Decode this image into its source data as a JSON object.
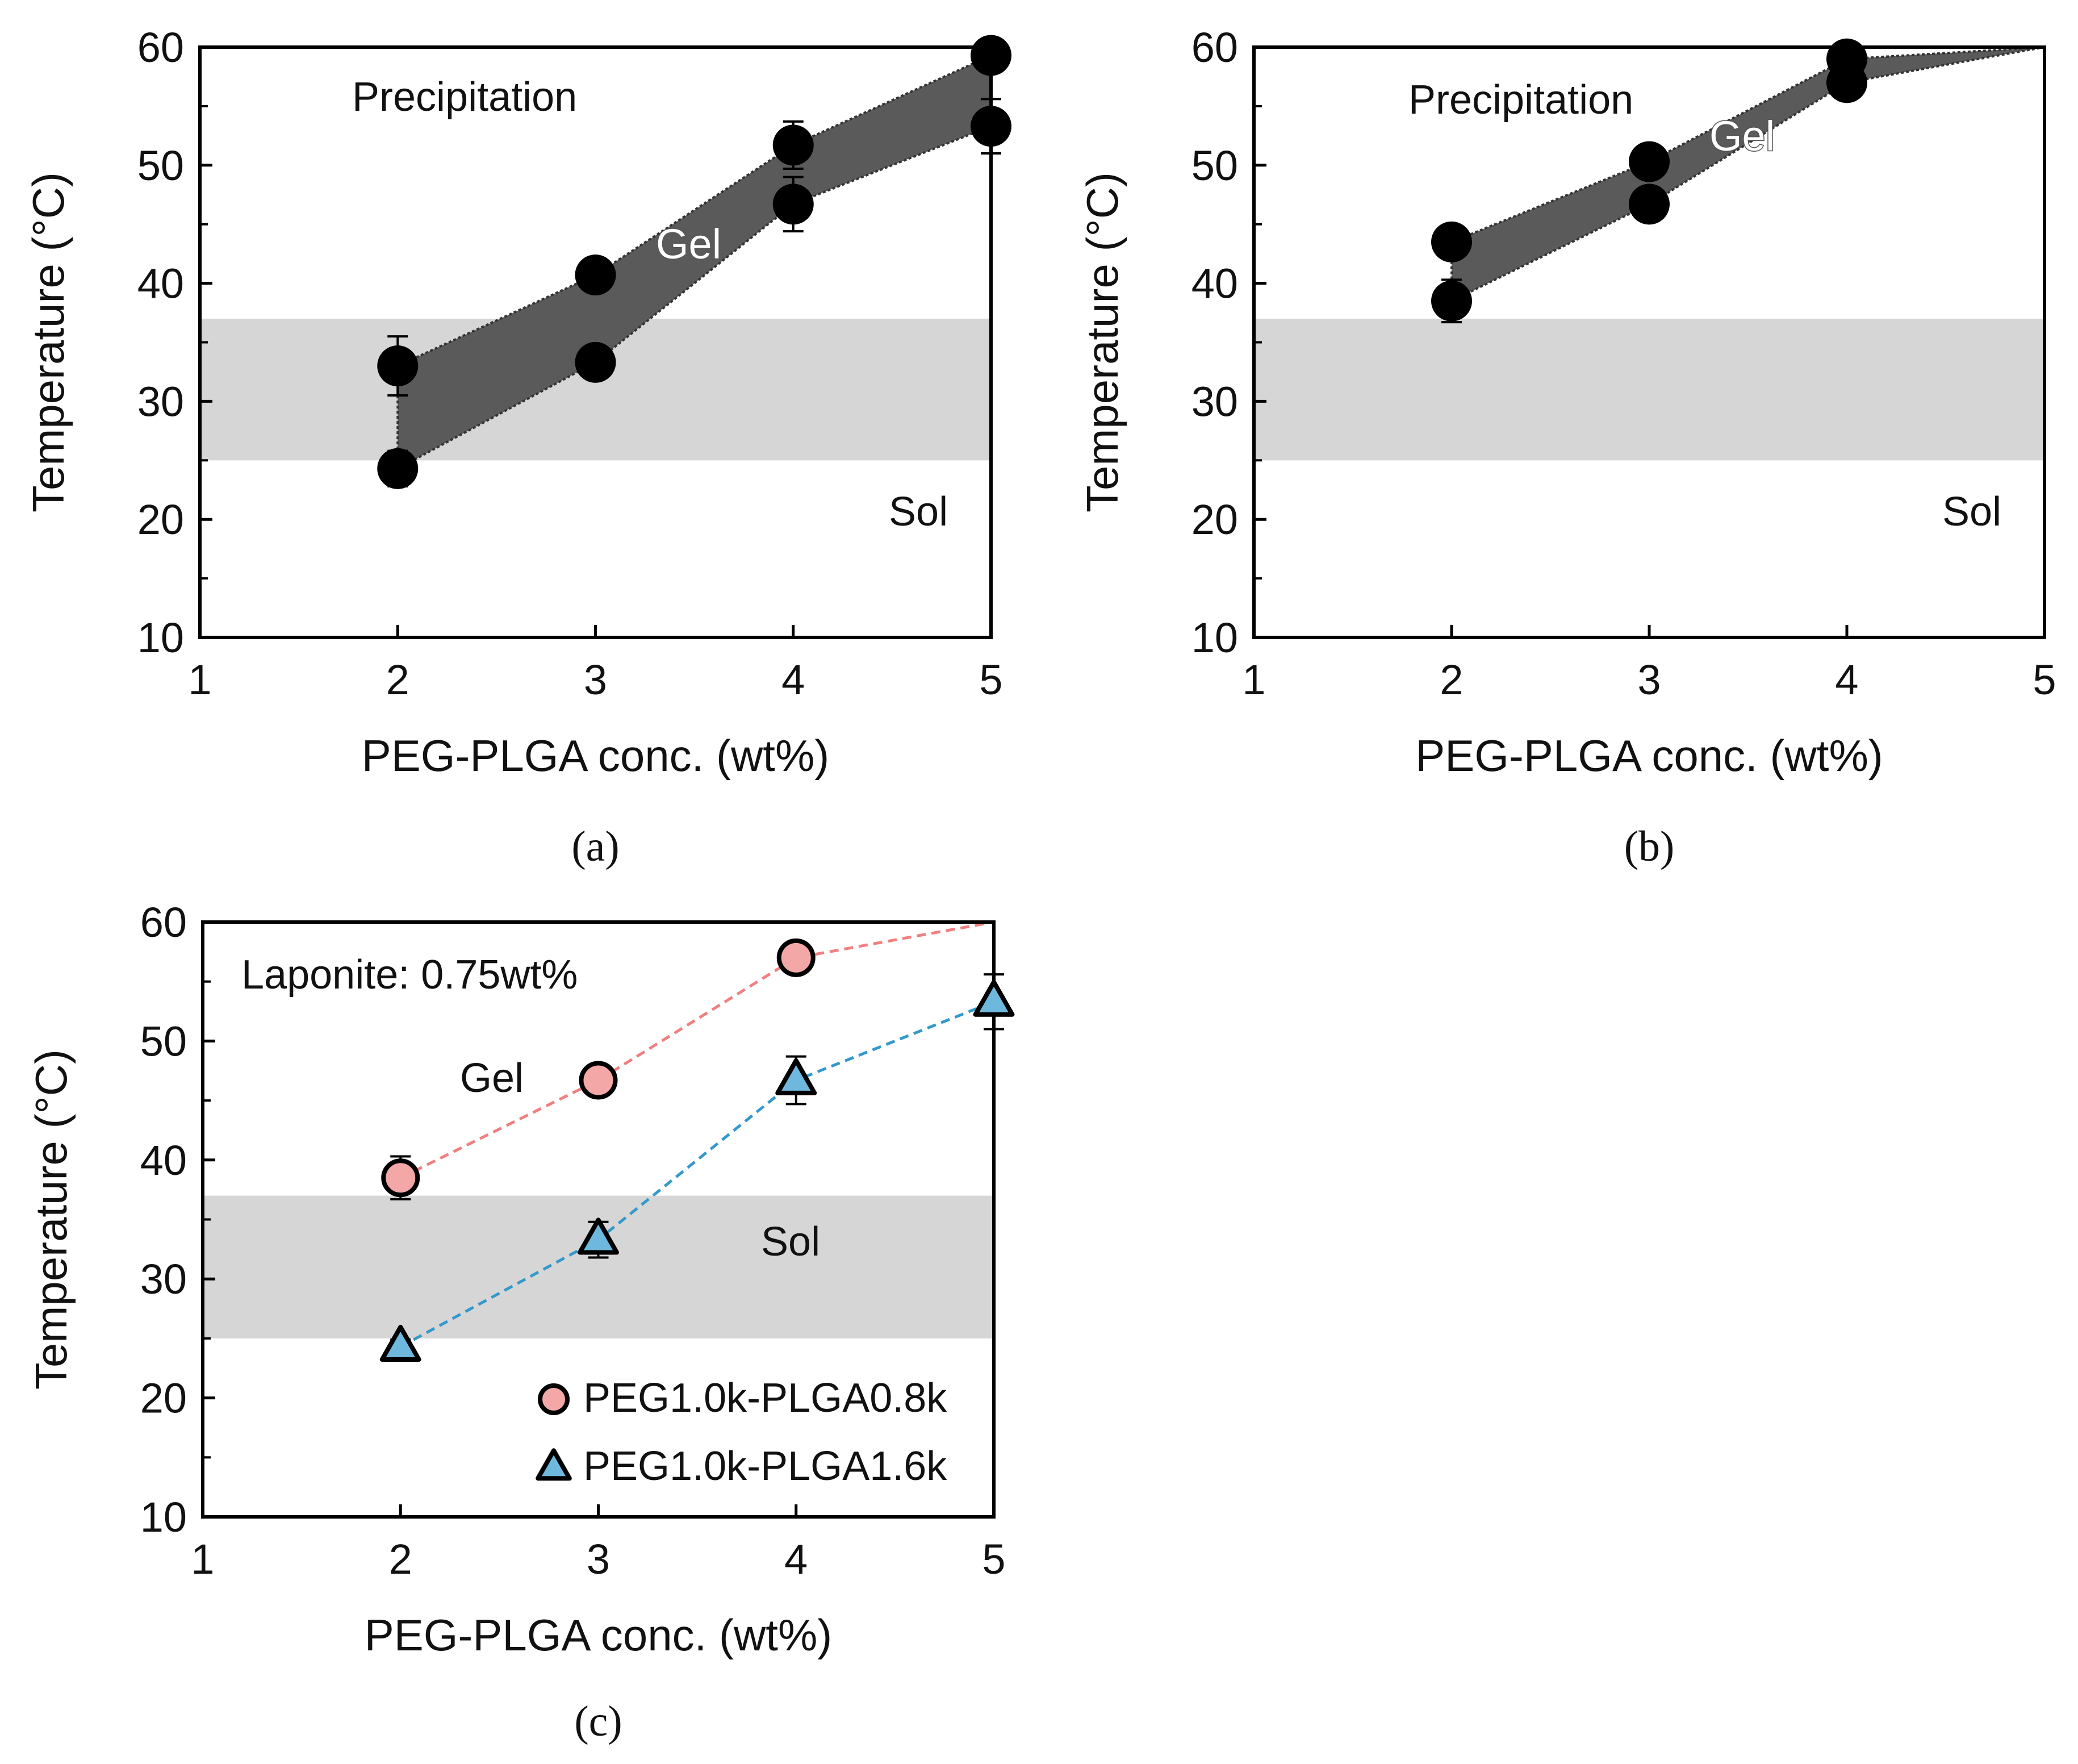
{
  "colors": {
    "band": "#d6d6d6",
    "gel_fill": "#5a5a5a",
    "marker": "#000000",
    "series1": "#f07f7f",
    "series1_marker": "#f4a7a7",
    "series2": "#3399cc",
    "series2_marker": "#6fb8dd"
  },
  "chart_data": [
    {
      "panel": "a",
      "type": "scatter",
      "panel_label": "(a)",
      "xlabel": "PEG-PLGA conc. (wt%)",
      "ylabel": "Temperature (°C)",
      "xlim": [
        1,
        5
      ],
      "ylim": [
        10,
        60
      ],
      "xticks": [
        "1",
        "2",
        "3",
        "4",
        "5"
      ],
      "yticks": [
        "10",
        "20",
        "30",
        "40",
        "50",
        "60"
      ],
      "band": [
        25,
        37
      ],
      "region_labels": {
        "precipitation": "Precipitation",
        "gel": "Gel",
        "sol": "Sol"
      },
      "series": [
        {
          "name": "upper",
          "x": [
            2,
            3,
            4,
            5
          ],
          "y": [
            33,
            40.7,
            51.7,
            59.3
          ],
          "err": [
            2.5,
            1.2,
            2.0,
            0.5
          ]
        },
        {
          "name": "lower",
          "x": [
            2,
            3,
            4,
            5
          ],
          "y": [
            24.3,
            33.3,
            46.7,
            53.3
          ],
          "err": [
            1.5,
            0.8,
            2.3,
            2.3
          ]
        }
      ]
    },
    {
      "panel": "b",
      "type": "scatter",
      "panel_label": "(b)",
      "xlabel": "PEG-PLGA conc. (wt%)",
      "ylabel": "Temperature (°C)",
      "xlim": [
        1,
        5
      ],
      "ylim": [
        10,
        60
      ],
      "xticks": [
        "1",
        "2",
        "3",
        "4",
        "5"
      ],
      "yticks": [
        "10",
        "20",
        "30",
        "40",
        "50",
        "60"
      ],
      "band": [
        25,
        37
      ],
      "region_labels": {
        "precipitation": "Precipitation",
        "gel": "Gel",
        "sol": "Sol"
      },
      "series": [
        {
          "name": "upper",
          "x": [
            2,
            3,
            4,
            5
          ],
          "y": [
            43.5,
            50.3,
            59,
            60
          ],
          "err": [
            0.8,
            0.8,
            0.5,
            0
          ],
          "marker_count": 3
        },
        {
          "name": "lower",
          "x": [
            2,
            3,
            4,
            5
          ],
          "y": [
            38.5,
            46.7,
            57,
            60
          ],
          "err": [
            1.8,
            0.8,
            0.5,
            0
          ],
          "marker_count": 3
        }
      ]
    },
    {
      "panel": "c",
      "type": "line",
      "panel_label": "(c)",
      "xlabel": "PEG-PLGA conc. (wt%)",
      "ylabel": "Temperature (°C)",
      "xlim": [
        1,
        5
      ],
      "ylim": [
        10,
        60
      ],
      "xticks": [
        "1",
        "2",
        "3",
        "4",
        "5"
      ],
      "yticks": [
        "10",
        "20",
        "30",
        "40",
        "50",
        "60"
      ],
      "band": [
        25,
        37
      ],
      "annotation": "Laponite: 0.75wt%",
      "region_labels": {
        "gel": "Gel",
        "sol": "Sol"
      },
      "legend_position": "bottom-right",
      "series": [
        {
          "name": "PEG1.0k-PLGA0.8k",
          "marker": "circle",
          "x": [
            2,
            3,
            4,
            5
          ],
          "y": [
            38.5,
            46.7,
            57,
            60
          ],
          "err": [
            1.8,
            0.8,
            0.5,
            0
          ],
          "marker_count": 3
        },
        {
          "name": "PEG1.0k-PLGA1.6k",
          "marker": "triangle",
          "x": [
            2,
            3,
            4,
            5
          ],
          "y": [
            24.3,
            33.3,
            46.7,
            53.3
          ],
          "err": [
            0.6,
            1.5,
            2.0,
            2.3
          ],
          "marker_count": 4
        }
      ]
    }
  ]
}
